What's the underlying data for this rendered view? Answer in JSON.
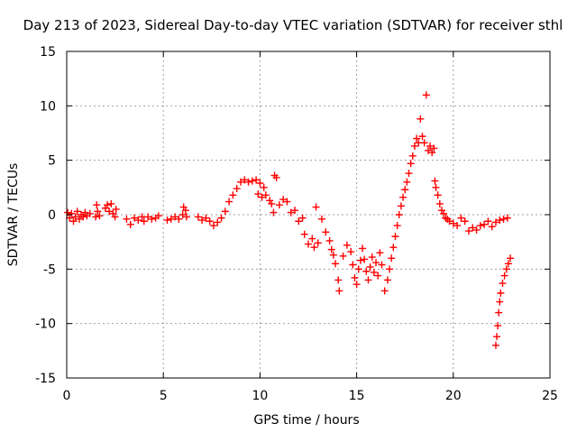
{
  "chart_data": {
    "type": "scatter",
    "title": "Day 213 of 2023, Sidereal Day-to-day VTEC variation (SDTVAR) for receiver sthl",
    "xlabel": "GPS time / hours",
    "ylabel": "SDTVAR / TECUs",
    "xlim": [
      0,
      25
    ],
    "ylim": [
      -15,
      15
    ],
    "xticks": [
      0,
      5,
      10,
      15,
      20,
      25
    ],
    "yticks": [
      -15,
      -10,
      -5,
      0,
      5,
      10,
      15
    ],
    "xtick_labels": [
      "0",
      "5",
      "10",
      "15",
      "20",
      "25"
    ],
    "ytick_labels": [
      "-15",
      "-10",
      "-5",
      "0",
      "5",
      "10",
      "15"
    ],
    "grid": true,
    "marker": "+",
    "series": [
      {
        "name": "SDTVAR",
        "color": "#ff0000",
        "points": [
          [
            0.05,
            0.2
          ],
          [
            0.15,
            -0.3
          ],
          [
            0.25,
            0.1
          ],
          [
            0.35,
            -0.6
          ],
          [
            0.45,
            -0.2
          ],
          [
            0.55,
            0.3
          ],
          [
            0.65,
            -0.4
          ],
          [
            0.75,
            0.0
          ],
          [
            0.85,
            -0.2
          ],
          [
            0.95,
            0.2
          ],
          [
            1.05,
            -0.1
          ],
          [
            1.2,
            0.1
          ],
          [
            1.5,
            -0.2
          ],
          [
            1.6,
            0.3
          ],
          [
            1.55,
            0.9
          ],
          [
            1.7,
            -0.1
          ],
          [
            2.0,
            0.6
          ],
          [
            2.1,
            0.9
          ],
          [
            2.2,
            0.3
          ],
          [
            2.3,
            1.0
          ],
          [
            2.4,
            0.1
          ],
          [
            2.5,
            -0.2
          ],
          [
            2.55,
            0.5
          ],
          [
            3.1,
            -0.4
          ],
          [
            3.3,
            -0.9
          ],
          [
            3.5,
            -0.3
          ],
          [
            3.7,
            -0.5
          ],
          [
            3.9,
            -0.2
          ],
          [
            4.0,
            -0.6
          ],
          [
            4.2,
            -0.2
          ],
          [
            4.4,
            -0.4
          ],
          [
            4.6,
            -0.3
          ],
          [
            4.75,
            -0.1
          ],
          [
            5.2,
            -0.5
          ],
          [
            5.4,
            -0.4
          ],
          [
            5.6,
            -0.2
          ],
          [
            5.8,
            -0.4
          ],
          [
            6.0,
            0.0
          ],
          [
            6.05,
            0.7
          ],
          [
            6.15,
            0.4
          ],
          [
            6.2,
            -0.2
          ],
          [
            6.8,
            -0.2
          ],
          [
            7.0,
            -0.5
          ],
          [
            7.2,
            -0.3
          ],
          [
            7.4,
            -0.6
          ],
          [
            7.6,
            -1.0
          ],
          [
            7.8,
            -0.7
          ],
          [
            8.0,
            -0.3
          ],
          [
            8.2,
            0.3
          ],
          [
            8.4,
            1.2
          ],
          [
            8.6,
            1.8
          ],
          [
            8.8,
            2.4
          ],
          [
            9.0,
            3.0
          ],
          [
            9.2,
            3.2
          ],
          [
            9.4,
            3.0
          ],
          [
            9.6,
            3.1
          ],
          [
            9.8,
            3.2
          ],
          [
            10.0,
            2.9
          ],
          [
            10.2,
            2.5
          ],
          [
            9.9,
            1.9
          ],
          [
            10.1,
            1.6
          ],
          [
            10.3,
            1.8
          ],
          [
            10.5,
            1.3
          ],
          [
            10.6,
            1.0
          ],
          [
            10.7,
            0.2
          ],
          [
            10.75,
            3.6
          ],
          [
            10.85,
            3.4
          ],
          [
            11.0,
            0.9
          ],
          [
            11.2,
            1.4
          ],
          [
            11.4,
            1.2
          ],
          [
            11.6,
            0.2
          ],
          [
            11.8,
            0.4
          ],
          [
            12.0,
            -0.6
          ],
          [
            12.2,
            -0.3
          ],
          [
            12.3,
            -1.8
          ],
          [
            12.5,
            -2.7
          ],
          [
            12.7,
            -2.2
          ],
          [
            12.8,
            -3.0
          ],
          [
            12.9,
            0.7
          ],
          [
            13.0,
            -2.6
          ],
          [
            13.2,
            -0.4
          ],
          [
            13.4,
            -1.6
          ],
          [
            13.6,
            -2.4
          ],
          [
            13.7,
            -3.2
          ],
          [
            13.8,
            -3.7
          ],
          [
            13.9,
            -4.5
          ],
          [
            14.05,
            -6.0
          ],
          [
            14.1,
            -7.0
          ],
          [
            14.3,
            -3.8
          ],
          [
            14.5,
            -2.8
          ],
          [
            14.7,
            -3.4
          ],
          [
            14.8,
            -4.6
          ],
          [
            14.9,
            -5.8
          ],
          [
            15.0,
            -6.4
          ],
          [
            15.1,
            -5.0
          ],
          [
            15.2,
            -4.2
          ],
          [
            15.3,
            -3.1
          ],
          [
            15.4,
            -4.1
          ],
          [
            15.5,
            -5.2
          ],
          [
            15.6,
            -6.0
          ],
          [
            15.7,
            -4.8
          ],
          [
            15.8,
            -3.9
          ],
          [
            15.9,
            -5.3
          ],
          [
            16.0,
            -4.4
          ],
          [
            16.1,
            -5.6
          ],
          [
            16.2,
            -3.5
          ],
          [
            16.3,
            -4.6
          ],
          [
            16.45,
            -7.0
          ],
          [
            16.6,
            -6.0
          ],
          [
            16.7,
            -5.0
          ],
          [
            16.8,
            -4.0
          ],
          [
            16.9,
            -3.0
          ],
          [
            17.0,
            -2.0
          ],
          [
            17.1,
            -1.0
          ],
          [
            17.2,
            0.0
          ],
          [
            17.3,
            0.8
          ],
          [
            17.4,
            1.6
          ],
          [
            17.5,
            2.3
          ],
          [
            17.6,
            3.0
          ],
          [
            17.7,
            3.8
          ],
          [
            17.8,
            4.7
          ],
          [
            17.9,
            5.4
          ],
          [
            18.0,
            6.3
          ],
          [
            18.1,
            7.0
          ],
          [
            18.2,
            6.6
          ],
          [
            18.3,
            8.8
          ],
          [
            18.4,
            7.2
          ],
          [
            18.5,
            6.6
          ],
          [
            18.6,
            11.0
          ],
          [
            18.7,
            5.9
          ],
          [
            18.8,
            6.3
          ],
          [
            18.9,
            5.7
          ],
          [
            19.0,
            6.1
          ],
          [
            19.05,
            3.1
          ],
          [
            19.1,
            2.5
          ],
          [
            19.2,
            1.8
          ],
          [
            19.3,
            1.0
          ],
          [
            19.4,
            0.4
          ],
          [
            19.5,
            0.1
          ],
          [
            19.6,
            -0.3
          ],
          [
            19.7,
            -0.4
          ],
          [
            19.8,
            -0.6
          ],
          [
            20.0,
            -0.8
          ],
          [
            20.2,
            -1.0
          ],
          [
            20.4,
            -0.3
          ],
          [
            20.6,
            -0.6
          ],
          [
            20.8,
            -1.5
          ],
          [
            21.0,
            -1.2
          ],
          [
            21.2,
            -1.4
          ],
          [
            21.4,
            -1.0
          ],
          [
            21.6,
            -0.9
          ],
          [
            21.8,
            -0.6
          ],
          [
            22.0,
            -1.1
          ],
          [
            22.2,
            -0.7
          ],
          [
            22.4,
            -0.5
          ],
          [
            22.6,
            -0.4
          ],
          [
            22.8,
            -0.3
          ],
          [
            22.2,
            -12.0
          ],
          [
            22.25,
            -11.2
          ],
          [
            22.3,
            -10.2
          ],
          [
            22.35,
            -9.0
          ],
          [
            22.4,
            -8.0
          ],
          [
            22.45,
            -7.2
          ],
          [
            22.55,
            -6.3
          ],
          [
            22.65,
            -5.6
          ],
          [
            22.75,
            -5.0
          ],
          [
            22.85,
            -4.5
          ],
          [
            22.95,
            -4.0
          ]
        ]
      }
    ]
  }
}
